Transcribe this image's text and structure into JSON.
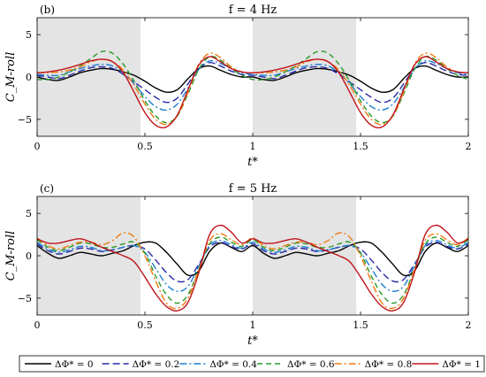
{
  "chart_data": [
    {
      "type": "line",
      "panel_label": "(b)",
      "title": "f = 4 Hz",
      "xlabel": "t*",
      "ylabel": "C_M-roll",
      "xlim": [
        0,
        2
      ],
      "ylim": [
        -7,
        7
      ],
      "xticks": [
        "0",
        "0.5",
        "1",
        "1.5",
        "2"
      ],
      "yticks": [
        "-5",
        "0",
        "5"
      ],
      "shaded_spans": [
        [
          0,
          0.48
        ],
        [
          1,
          1.48
        ]
      ],
      "grid": false,
      "series": [
        {
          "name": "ΔΦ* = 0",
          "color": "#000000",
          "dash": "solid",
          "x": [
            0,
            0.05,
            0.1,
            0.15,
            0.2,
            0.25,
            0.3,
            0.35,
            0.4,
            0.45,
            0.5,
            0.55,
            0.6,
            0.65,
            0.7,
            0.75,
            0.8,
            0.85,
            0.9,
            0.95,
            1.0
          ],
          "y": [
            0,
            -0.3,
            -0.4,
            0.0,
            0.5,
            0.8,
            1.0,
            0.9,
            0.6,
            0.2,
            -0.5,
            -1.3,
            -1.8,
            -1.5,
            -0.2,
            1.0,
            1.3,
            0.8,
            0.3,
            0.0,
            0
          ]
        },
        {
          "name": "ΔΦ* = 0.2",
          "color": "#2a2aa8",
          "dash": "8,4",
          "x": [
            0,
            0.05,
            0.1,
            0.15,
            0.2,
            0.25,
            0.3,
            0.35,
            0.4,
            0.45,
            0.5,
            0.55,
            0.6,
            0.65,
            0.7,
            0.75,
            0.8,
            0.85,
            0.9,
            0.95,
            1.0
          ],
          "y": [
            0.2,
            0.0,
            -0.2,
            0.2,
            0.7,
            1.1,
            1.2,
            1.0,
            0.3,
            -0.6,
            -1.5,
            -2.4,
            -3.0,
            -2.5,
            -0.8,
            1.0,
            1.7,
            1.3,
            0.7,
            0.3,
            0.2
          ]
        },
        {
          "name": "ΔΦ* = 0.4",
          "color": "#1f7fd0",
          "dash": "8,3,2,3",
          "x": [
            0,
            0.05,
            0.1,
            0.15,
            0.2,
            0.25,
            0.3,
            0.35,
            0.4,
            0.45,
            0.5,
            0.55,
            0.6,
            0.65,
            0.7,
            0.75,
            0.8,
            0.85,
            0.9,
            0.95,
            1.0
          ],
          "y": [
            0.3,
            0.2,
            0.2,
            0.6,
            1.0,
            1.3,
            1.5,
            1.3,
            0.5,
            -0.8,
            -2.3,
            -3.5,
            -3.9,
            -3.2,
            -1.3,
            0.9,
            1.9,
            1.6,
            1.0,
            0.5,
            0.3
          ]
        },
        {
          "name": "ΔΦ* = 0.6",
          "color": "#2a9a2a",
          "dash": "6,4",
          "x": [
            0,
            0.05,
            0.1,
            0.15,
            0.2,
            0.25,
            0.3,
            0.35,
            0.4,
            0.45,
            0.5,
            0.55,
            0.6,
            0.65,
            0.7,
            0.75,
            0.8,
            0.85,
            0.9,
            0.95,
            1.0
          ],
          "y": [
            -0.3,
            -0.3,
            0.0,
            0.6,
            1.3,
            2.2,
            3.0,
            2.8,
            1.5,
            -0.5,
            -2.8,
            -4.6,
            -5.4,
            -4.6,
            -2.0,
            0.9,
            2.4,
            2.0,
            1.0,
            0.2,
            -0.3
          ]
        },
        {
          "name": "ΔΦ* = 0.8",
          "color": "#f07a10",
          "dash": "8,3,2,3",
          "x": [
            0,
            0.05,
            0.1,
            0.15,
            0.2,
            0.25,
            0.3,
            0.35,
            0.4,
            0.45,
            0.5,
            0.55,
            0.6,
            0.65,
            0.7,
            0.75,
            0.8,
            0.85,
            0.9,
            0.95,
            1.0
          ],
          "y": [
            0.5,
            0.5,
            0.6,
            0.8,
            1.2,
            1.8,
            2.1,
            1.8,
            0.8,
            -1.0,
            -3.2,
            -5.0,
            -5.6,
            -4.6,
            -1.8,
            1.5,
            2.8,
            2.3,
            1.2,
            0.6,
            0.5
          ]
        },
        {
          "name": "ΔΦ* = 1",
          "color": "#c0141a",
          "dash": "solid",
          "x": [
            0,
            0.05,
            0.1,
            0.15,
            0.2,
            0.25,
            0.3,
            0.35,
            0.4,
            0.45,
            0.5,
            0.55,
            0.6,
            0.65,
            0.7,
            0.75,
            0.8,
            0.85,
            0.9,
            0.95,
            1.0
          ],
          "y": [
            0.5,
            0.6,
            0.8,
            1.1,
            1.5,
            1.9,
            2.1,
            1.8,
            0.5,
            -1.8,
            -4.2,
            -5.7,
            -5.9,
            -4.5,
            -1.5,
            1.4,
            2.4,
            1.8,
            1.0,
            0.6,
            0.5
          ]
        }
      ]
    },
    {
      "type": "line",
      "panel_label": "(c)",
      "title": "f = 5 Hz",
      "xlabel": "t*",
      "ylabel": "C_M-roll",
      "xlim": [
        0,
        2
      ],
      "ylim": [
        -7,
        7
      ],
      "xticks": [
        "0",
        "0.5",
        "1",
        "1.5",
        "2"
      ],
      "yticks": [
        "-5",
        "0",
        "5"
      ],
      "shaded_spans": [
        [
          0,
          0.48
        ],
        [
          1,
          1.48
        ]
      ],
      "grid": false,
      "series": [
        {
          "name": "ΔΦ* = 0",
          "color": "#000000",
          "dash": "solid",
          "x": [
            0,
            0.05,
            0.1,
            0.15,
            0.2,
            0.25,
            0.3,
            0.35,
            0.4,
            0.45,
            0.5,
            0.55,
            0.6,
            0.65,
            0.7,
            0.75,
            0.8,
            0.85,
            0.9,
            0.95,
            1.0
          ],
          "y": [
            1.2,
            0.3,
            -0.3,
            0.0,
            0.4,
            0.2,
            0.0,
            0.3,
            0.6,
            1.2,
            1.6,
            1.5,
            0.4,
            -1.0,
            -2.3,
            -1.8,
            0.5,
            1.5,
            1.0,
            0.5,
            1.2
          ]
        },
        {
          "name": "ΔΦ* = 0.2",
          "color": "#2a2aa8",
          "dash": "8,4",
          "x": [
            0,
            0.05,
            0.1,
            0.15,
            0.2,
            0.25,
            0.3,
            0.35,
            0.4,
            0.45,
            0.5,
            0.55,
            0.6,
            0.65,
            0.7,
            0.75,
            0.8,
            0.85,
            0.9,
            0.95,
            1.0
          ],
          "y": [
            1.4,
            0.6,
            0.2,
            0.5,
            0.9,
            0.8,
            0.5,
            0.7,
            1.0,
            1.2,
            0.8,
            -0.5,
            -2.0,
            -3.0,
            -2.8,
            -1.0,
            1.0,
            1.6,
            1.1,
            0.8,
            1.4
          ]
        },
        {
          "name": "ΔΦ* = 0.4",
          "color": "#1f7fd0",
          "dash": "8,3,2,3",
          "x": [
            0,
            0.05,
            0.1,
            0.15,
            0.2,
            0.25,
            0.3,
            0.35,
            0.4,
            0.45,
            0.5,
            0.55,
            0.6,
            0.65,
            0.7,
            0.75,
            0.8,
            0.85,
            0.9,
            0.95,
            1.0
          ],
          "y": [
            1.6,
            0.8,
            0.4,
            0.7,
            1.1,
            1.0,
            0.6,
            0.7,
            1.0,
            1.2,
            0.4,
            -1.5,
            -3.4,
            -4.2,
            -3.6,
            -1.2,
            1.2,
            1.8,
            1.3,
            0.9,
            1.6
          ]
        },
        {
          "name": "ΔΦ* = 0.6",
          "color": "#2a9a2a",
          "dash": "6,4",
          "x": [
            0,
            0.05,
            0.1,
            0.15,
            0.2,
            0.25,
            0.3,
            0.35,
            0.4,
            0.45,
            0.5,
            0.55,
            0.6,
            0.65,
            0.7,
            0.75,
            0.8,
            0.85,
            0.9,
            0.95,
            1.0
          ],
          "y": [
            1.9,
            1.0,
            0.6,
            1.0,
            1.5,
            1.4,
            1.0,
            1.0,
            1.4,
            1.6,
            0.3,
            -2.4,
            -4.6,
            -5.6,
            -4.6,
            -1.6,
            1.4,
            2.2,
            1.6,
            1.1,
            1.9
          ]
        },
        {
          "name": "ΔΦ* = 0.8",
          "color": "#f07a10",
          "dash": "8,3,2,3",
          "x": [
            0,
            0.05,
            0.1,
            0.15,
            0.2,
            0.25,
            0.3,
            0.35,
            0.4,
            0.45,
            0.5,
            0.55,
            0.6,
            0.65,
            0.7,
            0.75,
            0.8,
            0.85,
            0.9,
            0.95,
            1.0
          ],
          "y": [
            2.1,
            1.2,
            0.8,
            1.2,
            1.6,
            1.6,
            1.3,
            1.8,
            2.7,
            2.2,
            0.0,
            -3.0,
            -5.6,
            -6.2,
            -5.0,
            -1.6,
            1.8,
            2.6,
            1.9,
            1.3,
            2.1
          ]
        },
        {
          "name": "ΔΦ* = 1",
          "color": "#c0141a",
          "dash": "solid",
          "x": [
            0,
            0.05,
            0.1,
            0.15,
            0.2,
            0.25,
            0.3,
            0.35,
            0.4,
            0.45,
            0.5,
            0.55,
            0.6,
            0.65,
            0.7,
            0.75,
            0.8,
            0.85,
            0.9,
            0.95,
            1.0
          ],
          "y": [
            2.0,
            1.5,
            1.5,
            1.8,
            2.0,
            1.6,
            1.0,
            0.5,
            0.0,
            -0.7,
            -2.5,
            -4.5,
            -6.0,
            -6.5,
            -5.5,
            -2.0,
            2.5,
            3.6,
            2.8,
            1.5,
            2.0
          ]
        }
      ]
    }
  ]
}
